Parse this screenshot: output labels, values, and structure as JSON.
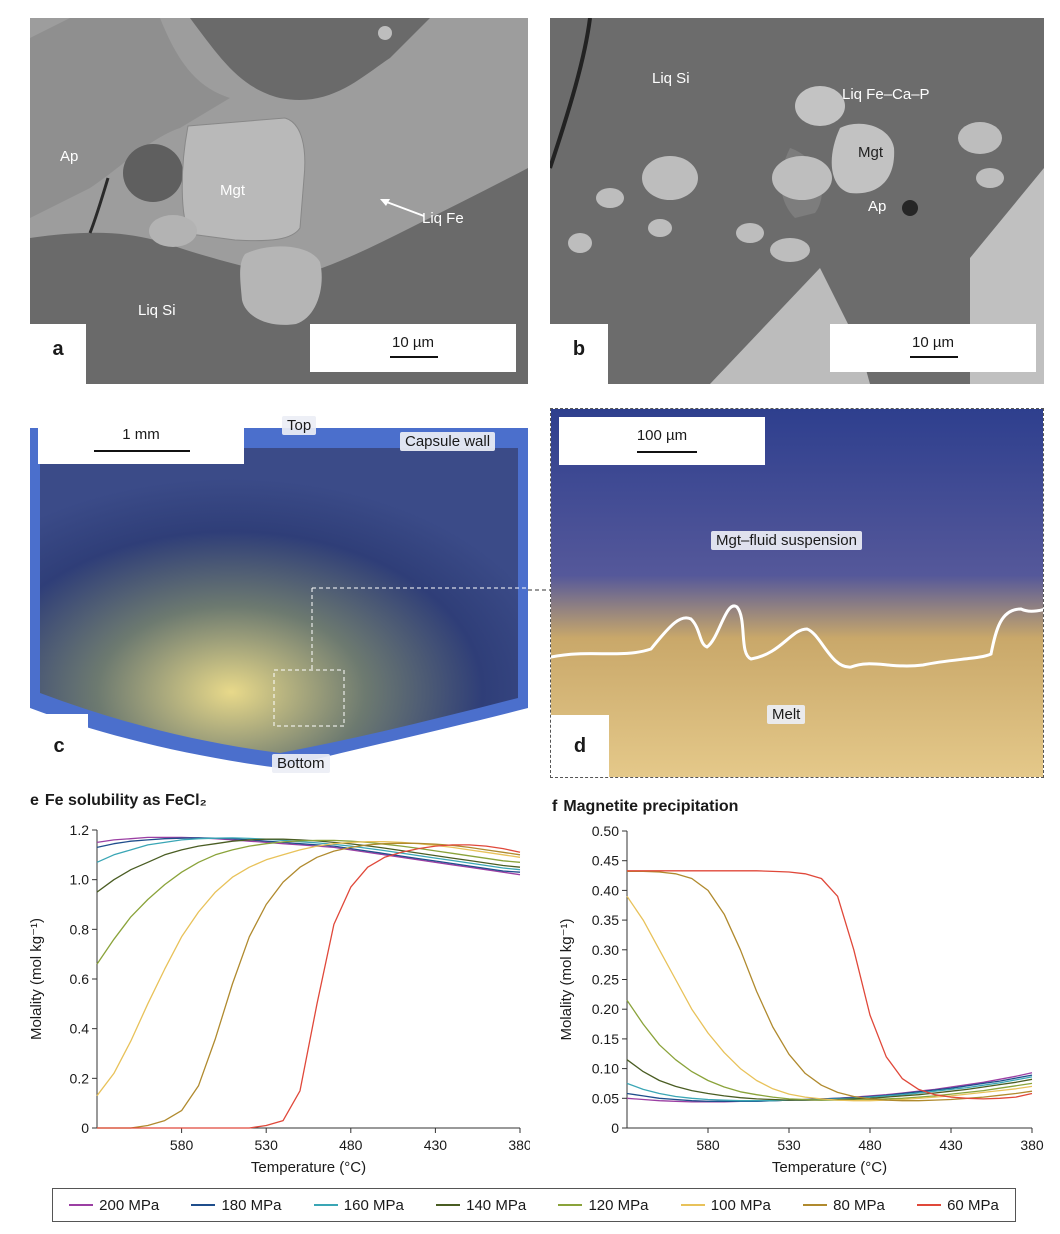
{
  "panels": {
    "a": {
      "letter": "a",
      "scale": "10 µm",
      "labels": {
        "ap": "Ap",
        "mgt": "Mgt",
        "liq_fe": "Liq Fe",
        "liq_si": "Liq Si"
      }
    },
    "b": {
      "letter": "b",
      "scale": "10 µm",
      "labels": {
        "liq_si": "Liq Si",
        "liq_fecap": "Liq Fe–Ca–P",
        "mgt": "Mgt",
        "ap": "Ap"
      }
    },
    "c": {
      "letter": "c",
      "scale": "1 mm",
      "labels": {
        "top": "Top",
        "capsule_wall": "Capsule wall",
        "bottom": "Bottom"
      }
    },
    "d": {
      "letter": "d",
      "scale": "100 µm",
      "labels": {
        "suspension": "Mgt–fluid suspension",
        "melt": "Melt"
      }
    }
  },
  "colors": {
    "200 MPa": "#9b3fa3",
    "180 MPa": "#1f4e8c",
    "160 MPa": "#3aa6b5",
    "140 MPa": "#4a5d23",
    "120 MPa": "#8aa33a",
    "100 MPa": "#e8c25a",
    "80 MPa": "#b08a2e",
    "60 MPa": "#e0483a"
  },
  "chart_data": [
    {
      "type": "line",
      "panel": "e",
      "title": "Fe solubility as FeCl₂",
      "xlabel": "Temperature (°C)",
      "ylabel": "Molality (mol kg⁻¹)",
      "xlim": [
        630,
        380
      ],
      "ylim": [
        0,
        1.2
      ],
      "xticks": [
        580,
        530,
        480,
        430,
        380
      ],
      "yticks": [
        0,
        0.2,
        0.4,
        0.6,
        0.8,
        1.0,
        1.2
      ],
      "ytick_labels": [
        "0",
        "0.2",
        "0.4",
        "0.6",
        "0.8",
        "1.0",
        "1.2"
      ],
      "x": [
        630,
        620,
        610,
        600,
        590,
        580,
        570,
        560,
        550,
        540,
        530,
        520,
        510,
        500,
        490,
        480,
        470,
        460,
        450,
        440,
        430,
        420,
        410,
        400,
        390,
        380
      ],
      "series": [
        {
          "name": "200 MPa",
          "values": [
            1.15,
            1.16,
            1.165,
            1.17,
            1.17,
            1.17,
            1.168,
            1.165,
            1.16,
            1.155,
            1.15,
            1.145,
            1.14,
            1.135,
            1.13,
            1.12,
            1.11,
            1.1,
            1.09,
            1.08,
            1.07,
            1.06,
            1.05,
            1.04,
            1.03,
            1.02
          ]
        },
        {
          "name": "180 MPa",
          "values": [
            1.13,
            1.145,
            1.155,
            1.16,
            1.165,
            1.167,
            1.168,
            1.167,
            1.165,
            1.16,
            1.155,
            1.15,
            1.145,
            1.14,
            1.135,
            1.125,
            1.115,
            1.105,
            1.095,
            1.085,
            1.075,
            1.065,
            1.055,
            1.045,
            1.035,
            1.03
          ]
        },
        {
          "name": "160 MPa",
          "values": [
            1.07,
            1.1,
            1.12,
            1.14,
            1.15,
            1.16,
            1.165,
            1.167,
            1.168,
            1.166,
            1.163,
            1.158,
            1.153,
            1.148,
            1.142,
            1.135,
            1.126,
            1.117,
            1.107,
            1.097,
            1.087,
            1.077,
            1.067,
            1.057,
            1.047,
            1.04
          ]
        },
        {
          "name": "140 MPa",
          "values": [
            0.95,
            1.0,
            1.04,
            1.07,
            1.1,
            1.12,
            1.135,
            1.145,
            1.155,
            1.16,
            1.163,
            1.163,
            1.16,
            1.156,
            1.15,
            1.144,
            1.136,
            1.127,
            1.117,
            1.107,
            1.097,
            1.087,
            1.077,
            1.067,
            1.057,
            1.05
          ]
        },
        {
          "name": "120 MPa",
          "values": [
            0.66,
            0.76,
            0.85,
            0.92,
            0.98,
            1.03,
            1.07,
            1.1,
            1.12,
            1.135,
            1.145,
            1.152,
            1.156,
            1.158,
            1.158,
            1.155,
            1.15,
            1.143,
            1.135,
            1.126,
            1.116,
            1.106,
            1.096,
            1.086,
            1.076,
            1.07
          ]
        },
        {
          "name": "100 MPa",
          "values": [
            0.13,
            0.22,
            0.35,
            0.5,
            0.64,
            0.77,
            0.87,
            0.95,
            1.01,
            1.05,
            1.08,
            1.1,
            1.12,
            1.135,
            1.145,
            1.15,
            1.153,
            1.153,
            1.15,
            1.145,
            1.138,
            1.13,
            1.12,
            1.11,
            1.1,
            1.09
          ]
        },
        {
          "name": "80 MPa",
          "values": [
            0,
            0,
            0,
            0.01,
            0.03,
            0.07,
            0.17,
            0.36,
            0.58,
            0.77,
            0.9,
            0.99,
            1.05,
            1.09,
            1.115,
            1.13,
            1.14,
            1.145,
            1.147,
            1.146,
            1.143,
            1.138,
            1.13,
            1.12,
            1.11,
            1.1
          ]
        },
        {
          "name": "60 MPa",
          "values": [
            0,
            0,
            0,
            0,
            0,
            0,
            0,
            0,
            0,
            0,
            0.01,
            0.03,
            0.15,
            0.5,
            0.82,
            0.97,
            1.05,
            1.09,
            1.11,
            1.125,
            1.135,
            1.14,
            1.14,
            1.135,
            1.125,
            1.11
          ]
        }
      ]
    },
    {
      "type": "line",
      "panel": "f",
      "title": "Magnetite precipitation",
      "xlabel": "Temperature (°C)",
      "ylabel": "Molality (mol kg⁻¹)",
      "xlim": [
        630,
        380
      ],
      "ylim": [
        0,
        0.5
      ],
      "xticks": [
        580,
        530,
        480,
        430,
        380
      ],
      "yticks": [
        0,
        0.05,
        0.1,
        0.15,
        0.2,
        0.25,
        0.3,
        0.35,
        0.4,
        0.45,
        0.5
      ],
      "ytick_labels": [
        "0",
        "0.05",
        "0.10",
        "0.15",
        "0.20",
        "0.25",
        "0.30",
        "0.35",
        "0.40",
        "0.45",
        "0.50"
      ],
      "x": [
        630,
        620,
        610,
        600,
        590,
        580,
        570,
        560,
        550,
        540,
        530,
        520,
        510,
        500,
        490,
        480,
        470,
        460,
        450,
        440,
        430,
        420,
        410,
        400,
        390,
        380
      ],
      "series": [
        {
          "name": "200 MPa",
          "values": [
            0.05,
            0.048,
            0.046,
            0.045,
            0.044,
            0.044,
            0.044,
            0.045,
            0.045,
            0.046,
            0.047,
            0.048,
            0.049,
            0.05,
            0.052,
            0.054,
            0.056,
            0.059,
            0.062,
            0.065,
            0.069,
            0.073,
            0.077,
            0.082,
            0.087,
            0.093
          ]
        },
        {
          "name": "180 MPa",
          "values": [
            0.058,
            0.054,
            0.05,
            0.048,
            0.046,
            0.045,
            0.045,
            0.045,
            0.045,
            0.046,
            0.047,
            0.048,
            0.049,
            0.05,
            0.051,
            0.053,
            0.055,
            0.058,
            0.061,
            0.064,
            0.067,
            0.071,
            0.075,
            0.079,
            0.084,
            0.089
          ]
        },
        {
          "name": "160 MPa",
          "values": [
            0.075,
            0.065,
            0.058,
            0.053,
            0.05,
            0.048,
            0.047,
            0.046,
            0.046,
            0.046,
            0.047,
            0.047,
            0.048,
            0.049,
            0.05,
            0.052,
            0.054,
            0.056,
            0.059,
            0.062,
            0.065,
            0.068,
            0.072,
            0.076,
            0.081,
            0.086
          ]
        },
        {
          "name": "140 MPa",
          "values": [
            0.115,
            0.095,
            0.08,
            0.07,
            0.063,
            0.058,
            0.054,
            0.051,
            0.049,
            0.048,
            0.047,
            0.047,
            0.047,
            0.048,
            0.049,
            0.05,
            0.052,
            0.054,
            0.056,
            0.059,
            0.062,
            0.065,
            0.069,
            0.073,
            0.077,
            0.082
          ]
        },
        {
          "name": "120 MPa",
          "values": [
            0.215,
            0.175,
            0.14,
            0.115,
            0.095,
            0.08,
            0.069,
            0.061,
            0.056,
            0.052,
            0.049,
            0.048,
            0.047,
            0.047,
            0.047,
            0.048,
            0.049,
            0.05,
            0.052,
            0.054,
            0.057,
            0.06,
            0.063,
            0.067,
            0.071,
            0.075
          ]
        },
        {
          "name": "100 MPa",
          "values": [
            0.39,
            0.35,
            0.3,
            0.25,
            0.2,
            0.16,
            0.127,
            0.1,
            0.08,
            0.066,
            0.057,
            0.052,
            0.049,
            0.047,
            0.046,
            0.046,
            0.047,
            0.048,
            0.05,
            0.052,
            0.054,
            0.057,
            0.06,
            0.063,
            0.066,
            0.07
          ]
        },
        {
          "name": "80 MPa",
          "values": [
            0.432,
            0.432,
            0.431,
            0.428,
            0.42,
            0.4,
            0.36,
            0.3,
            0.23,
            0.17,
            0.124,
            0.092,
            0.072,
            0.06,
            0.053,
            0.049,
            0.047,
            0.046,
            0.046,
            0.047,
            0.048,
            0.05,
            0.052,
            0.055,
            0.058,
            0.062
          ]
        },
        {
          "name": "60 MPa",
          "values": [
            0.433,
            0.433,
            0.433,
            0.433,
            0.433,
            0.433,
            0.433,
            0.433,
            0.433,
            0.432,
            0.431,
            0.428,
            0.42,
            0.39,
            0.3,
            0.19,
            0.12,
            0.083,
            0.065,
            0.056,
            0.052,
            0.05,
            0.049,
            0.05,
            0.052,
            0.058
          ]
        }
      ]
    }
  ],
  "legend": [
    "200 MPa",
    "180 MPa",
    "160 MPa",
    "140 MPa",
    "120 MPa",
    "100 MPa",
    "80 MPa",
    "60 MPa"
  ]
}
